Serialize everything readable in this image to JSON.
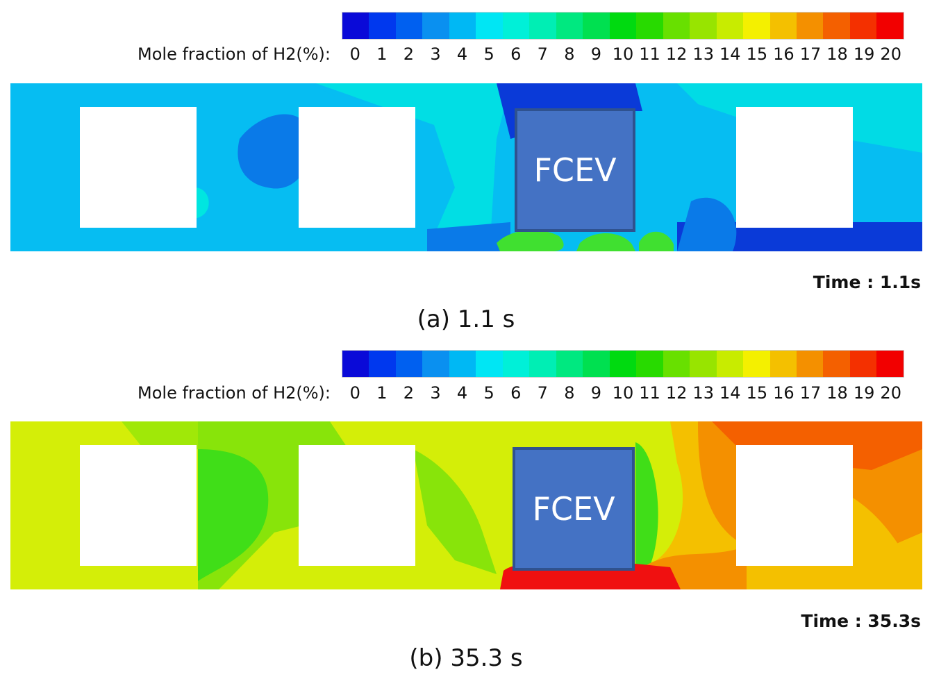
{
  "colorbar": {
    "label": "Mole fraction of H2(%):",
    "ticks": [
      "0",
      "1",
      "2",
      "3",
      "4",
      "5",
      "6",
      "7",
      "8",
      "9",
      "10",
      "11",
      "12",
      "13",
      "14",
      "15",
      "16",
      "17",
      "18",
      "19",
      "20"
    ],
    "colors": [
      "#0a0ad8",
      "#0038ee",
      "#0060f0",
      "#0a90f0",
      "#00b8f4",
      "#00e6f4",
      "#00f0d8",
      "#00eeb4",
      "#00e880",
      "#00e050",
      "#00da10",
      "#28da00",
      "#68e000",
      "#98e400",
      "#c8ec00",
      "#f4f000",
      "#f4c000",
      "#f49000",
      "#f46000",
      "#f43000",
      "#f20000"
    ]
  },
  "panels": [
    {
      "vehicle_label": "FCEV",
      "time_label": "Time : 1.1s",
      "caption": "(a) 1.1 s",
      "field_colors": {
        "background": "#06bdf2",
        "low": "#0a7ae8",
        "very_low": "#0a3ad8",
        "mid": "#00e6e0",
        "high": "#40e030"
      }
    },
    {
      "vehicle_label": "FCEV",
      "time_label": "Time : 35.3s",
      "caption": "(b) 35.3 s",
      "field_colors": {
        "background": "#d4ee08",
        "mid": "#88e40a",
        "low": "#40de18",
        "warm": "#f4c000",
        "hot": "#f49000",
        "very_hot": "#f46000",
        "peak": "#f01010"
      }
    }
  ]
}
